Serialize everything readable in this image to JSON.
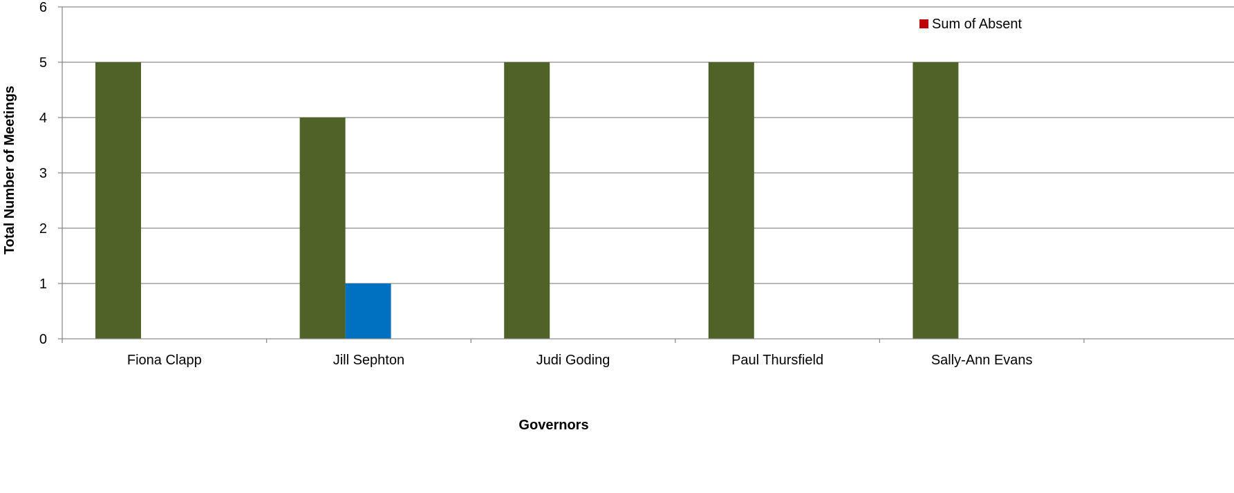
{
  "chart_data": {
    "type": "bar",
    "categories": [
      "Fiona Clapp",
      "Jill Sephton",
      "Judi Goding",
      "Paul Thursfield",
      "Sally-Ann Evans"
    ],
    "series": [
      {
        "values": [
          5,
          4,
          5,
          5,
          5
        ],
        "color": "#4F6228"
      },
      {
        "values": [
          0,
          1,
          0,
          0,
          0
        ],
        "color": "#0070C0"
      }
    ],
    "xlabel": "Governors",
    "ylabel": "Total Number of Meetings",
    "ylim": [
      0,
      6
    ],
    "yticks": [
      0,
      1,
      2,
      3,
      4,
      5,
      6
    ],
    "grid": true,
    "legend": {
      "placement": "top-right",
      "entries": [
        {
          "label": "Sum of Absent",
          "color": "#C00000"
        }
      ]
    }
  }
}
